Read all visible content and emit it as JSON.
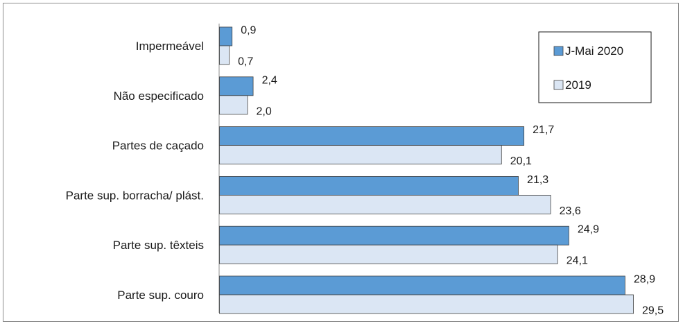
{
  "chart_data": {
    "type": "bar",
    "orientation": "horizontal",
    "categories": [
      "Impermeável",
      "Não especificado",
      "Partes de caçado",
      "Parte sup. borracha/ plást.",
      "Parte sup. têxteis",
      "Parte sup. couro"
    ],
    "series": [
      {
        "name": "J-Mai 2020",
        "values": [
          0.9,
          2.4,
          21.7,
          21.3,
          24.9,
          28.9
        ],
        "labels": [
          "0,9",
          "2,4",
          "21,7",
          "21,3",
          "24,9",
          "28,9"
        ],
        "color": "#5b9bd5"
      },
      {
        "name": "2019",
        "values": [
          0.7,
          2.0,
          20.1,
          23.6,
          24.1,
          29.5
        ],
        "labels": [
          "0,7",
          "2,0",
          "20,1",
          "23,6",
          "24,1",
          "29,5"
        ],
        "color": "#dbe6f4"
      }
    ],
    "xlim": [
      0,
      29.5
    ],
    "grid": false,
    "legend_position": "top-right",
    "title": "",
    "xlabel": "",
    "ylabel": ""
  }
}
